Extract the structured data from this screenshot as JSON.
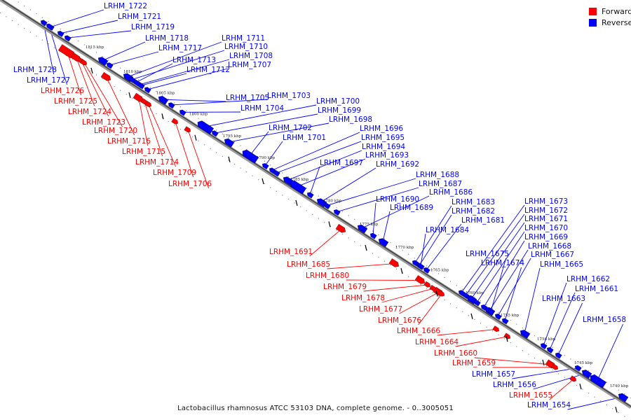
{
  "legend": {
    "items": [
      {
        "label": "Forward",
        "color": "#ff0000"
      },
      {
        "label": "Reverse",
        "color": "#0000ff"
      }
    ]
  },
  "caption": "Lactobacillus rhamnosus ATCC 53103 DNA, complete genome. - 0..3005051",
  "colors": {
    "forward": "#ff0000",
    "reverse": "#0000ff",
    "backbone": "#666666"
  },
  "ticks": [
    "1815 kbp",
    "1810 kbp",
    "1805 kbp",
    "1800 kbp",
    "1795 kbp",
    "1790 kbp",
    "1785 kbp",
    "1780 kbp",
    "1775 kbp",
    "1770 kbp",
    "1765 kbp",
    "1760 kbp",
    "1755 kbp",
    "1750 kbp",
    "1745 kbp",
    "1740 kbp"
  ],
  "genes": [
    {
      "name": "LRHM_1722",
      "strand": "reverse"
    },
    {
      "name": "LRHM_1721",
      "strand": "reverse"
    },
    {
      "name": "LRHM_1719",
      "strand": "reverse"
    },
    {
      "name": "LRHM_1718",
      "strand": "reverse"
    },
    {
      "name": "LRHM_1717",
      "strand": "reverse"
    },
    {
      "name": "LRHM_1711",
      "strand": "reverse"
    },
    {
      "name": "LRHM_1710",
      "strand": "reverse"
    },
    {
      "name": "LRHM_1708",
      "strand": "reverse"
    },
    {
      "name": "LRHM_1713",
      "strand": "reverse"
    },
    {
      "name": "LRHM_1707",
      "strand": "reverse"
    },
    {
      "name": "LRHM_1712",
      "strand": "reverse"
    },
    {
      "name": "LRHM_1728",
      "strand": "reverse"
    },
    {
      "name": "LRHM_1727",
      "strand": "reverse"
    },
    {
      "name": "LRHM_1726",
      "strand": "forward"
    },
    {
      "name": "LRHM_1725",
      "strand": "forward"
    },
    {
      "name": "LRHM_1724",
      "strand": "forward"
    },
    {
      "name": "LRHM_1723",
      "strand": "forward"
    },
    {
      "name": "LRHM_1720",
      "strand": "forward"
    },
    {
      "name": "LRHM_1716",
      "strand": "forward"
    },
    {
      "name": "LRHM_1715",
      "strand": "forward"
    },
    {
      "name": "LRHM_1714",
      "strand": "forward"
    },
    {
      "name": "LRHM_1709",
      "strand": "forward"
    },
    {
      "name": "LRHM_1706",
      "strand": "forward"
    },
    {
      "name": "LRHM_1705",
      "strand": "reverse"
    },
    {
      "name": "LRHM_1703",
      "strand": "reverse"
    },
    {
      "name": "LRHM_1704",
      "strand": "reverse"
    },
    {
      "name": "LRHM_1700",
      "strand": "reverse"
    },
    {
      "name": "LRHM_1699",
      "strand": "reverse"
    },
    {
      "name": "LRHM_1698",
      "strand": "reverse"
    },
    {
      "name": "LRHM_1702",
      "strand": "reverse"
    },
    {
      "name": "LRHM_1701",
      "strand": "reverse"
    },
    {
      "name": "LRHM_1696",
      "strand": "reverse"
    },
    {
      "name": "LRHM_1695",
      "strand": "reverse"
    },
    {
      "name": "LRHM_1694",
      "strand": "reverse"
    },
    {
      "name": "LRHM_1693",
      "strand": "reverse"
    },
    {
      "name": "LRHM_1697",
      "strand": "reverse"
    },
    {
      "name": "LRHM_1692",
      "strand": "reverse"
    },
    {
      "name": "LRHM_1688",
      "strand": "reverse"
    },
    {
      "name": "LRHM_1687",
      "strand": "reverse"
    },
    {
      "name": "LRHM_1686",
      "strand": "reverse"
    },
    {
      "name": "LRHM_1690",
      "strand": "reverse"
    },
    {
      "name": "LRHM_1689",
      "strand": "reverse"
    },
    {
      "name": "LRHM_1683",
      "strand": "reverse"
    },
    {
      "name": "LRHM_1682",
      "strand": "reverse"
    },
    {
      "name": "LRHM_1681",
      "strand": "reverse"
    },
    {
      "name": "LRHM_1684",
      "strand": "reverse"
    },
    {
      "name": "LRHM_1673",
      "strand": "reverse"
    },
    {
      "name": "LRHM_1672",
      "strand": "reverse"
    },
    {
      "name": "LRHM_1671",
      "strand": "reverse"
    },
    {
      "name": "LRHM_1670",
      "strand": "reverse"
    },
    {
      "name": "LRHM_1669",
      "strand": "reverse"
    },
    {
      "name": "LRHM_1668",
      "strand": "reverse"
    },
    {
      "name": "LRHM_1675",
      "strand": "reverse"
    },
    {
      "name": "LRHM_1667",
      "strand": "reverse"
    },
    {
      "name": "LRHM_1674",
      "strand": "reverse"
    },
    {
      "name": "LRHM_1665",
      "strand": "reverse"
    },
    {
      "name": "LRHM_1662",
      "strand": "reverse"
    },
    {
      "name": "LRHM_1661",
      "strand": "reverse"
    },
    {
      "name": "LRHM_1663",
      "strand": "reverse"
    },
    {
      "name": "LRHM_1658",
      "strand": "reverse"
    },
    {
      "name": "LRHM_1691",
      "strand": "forward"
    },
    {
      "name": "LRHM_1685",
      "strand": "forward"
    },
    {
      "name": "LRHM_1680",
      "strand": "forward"
    },
    {
      "name": "LRHM_1679",
      "strand": "forward"
    },
    {
      "name": "LRHM_1678",
      "strand": "forward"
    },
    {
      "name": "LRHM_1677",
      "strand": "forward"
    },
    {
      "name": "LRHM_1676",
      "strand": "forward"
    },
    {
      "name": "LRHM_1666",
      "strand": "forward"
    },
    {
      "name": "LRHM_1664",
      "strand": "forward"
    },
    {
      "name": "LRHM_1660",
      "strand": "forward"
    },
    {
      "name": "LRHM_1659",
      "strand": "forward"
    },
    {
      "name": "LRHM_1657",
      "strand": "reverse"
    },
    {
      "name": "LRHM_1656",
      "strand": "reverse"
    },
    {
      "name": "LRHM_1655",
      "strand": "forward"
    },
    {
      "name": "LRHM_1654",
      "strand": "reverse"
    }
  ]
}
